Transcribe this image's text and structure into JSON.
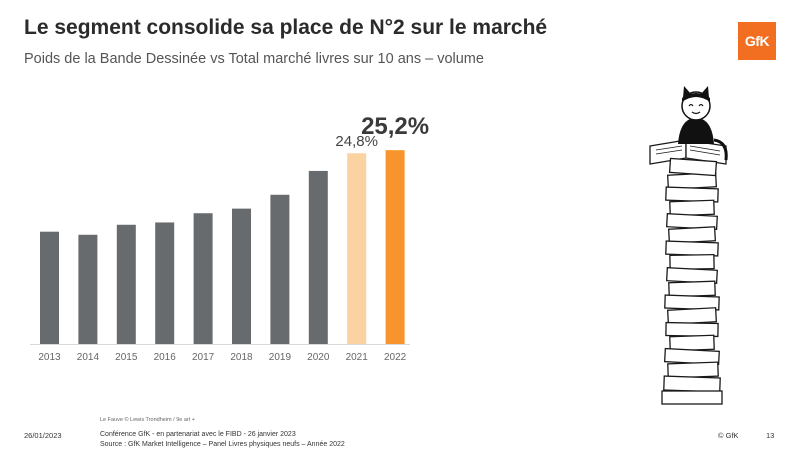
{
  "title": "Le segment consolide sa place de N°2 sur le marché",
  "subtitle": "Poids de la Bande Dessinée vs Total marché livres sur 10 ans – volume",
  "logo": "GfK",
  "chart_data": {
    "type": "bar",
    "title": "Poids de la Bande Dessinée vs Total marché livres sur 10 ans – volume",
    "categories": [
      "2013",
      "2014",
      "2015",
      "2016",
      "2017",
      "2018",
      "2019",
      "2020",
      "2021",
      "2022"
    ],
    "values": [
      14.6,
      14.2,
      15.5,
      15.8,
      17.0,
      17.6,
      19.4,
      22.5,
      24.8,
      25.2
    ],
    "labels": [
      "",
      "",
      "",
      "",
      "",
      "",
      "",
      "",
      "24,8%",
      "25,2%"
    ],
    "colors": [
      "#676b6e",
      "#676b6e",
      "#676b6e",
      "#676b6e",
      "#676b6e",
      "#676b6e",
      "#676b6e",
      "#676b6e",
      "#fbd3a2",
      "#f7942d"
    ],
    "ylabel": "",
    "xlabel": "",
    "ylim": [
      0,
      26
    ],
    "grid": false
  },
  "footer": {
    "date": "26/01/2023",
    "credit": "Le Fauve © Lewis Trondheim / 9e art +",
    "conference": "Conférence GfK - en partenariat avec le FIBD - 26 janvier 2023",
    "source": "Source : GfK Market Intelligence – Panel Livres physiques neufs – Année 2022",
    "copyright": "© GfK",
    "page": "13"
  }
}
